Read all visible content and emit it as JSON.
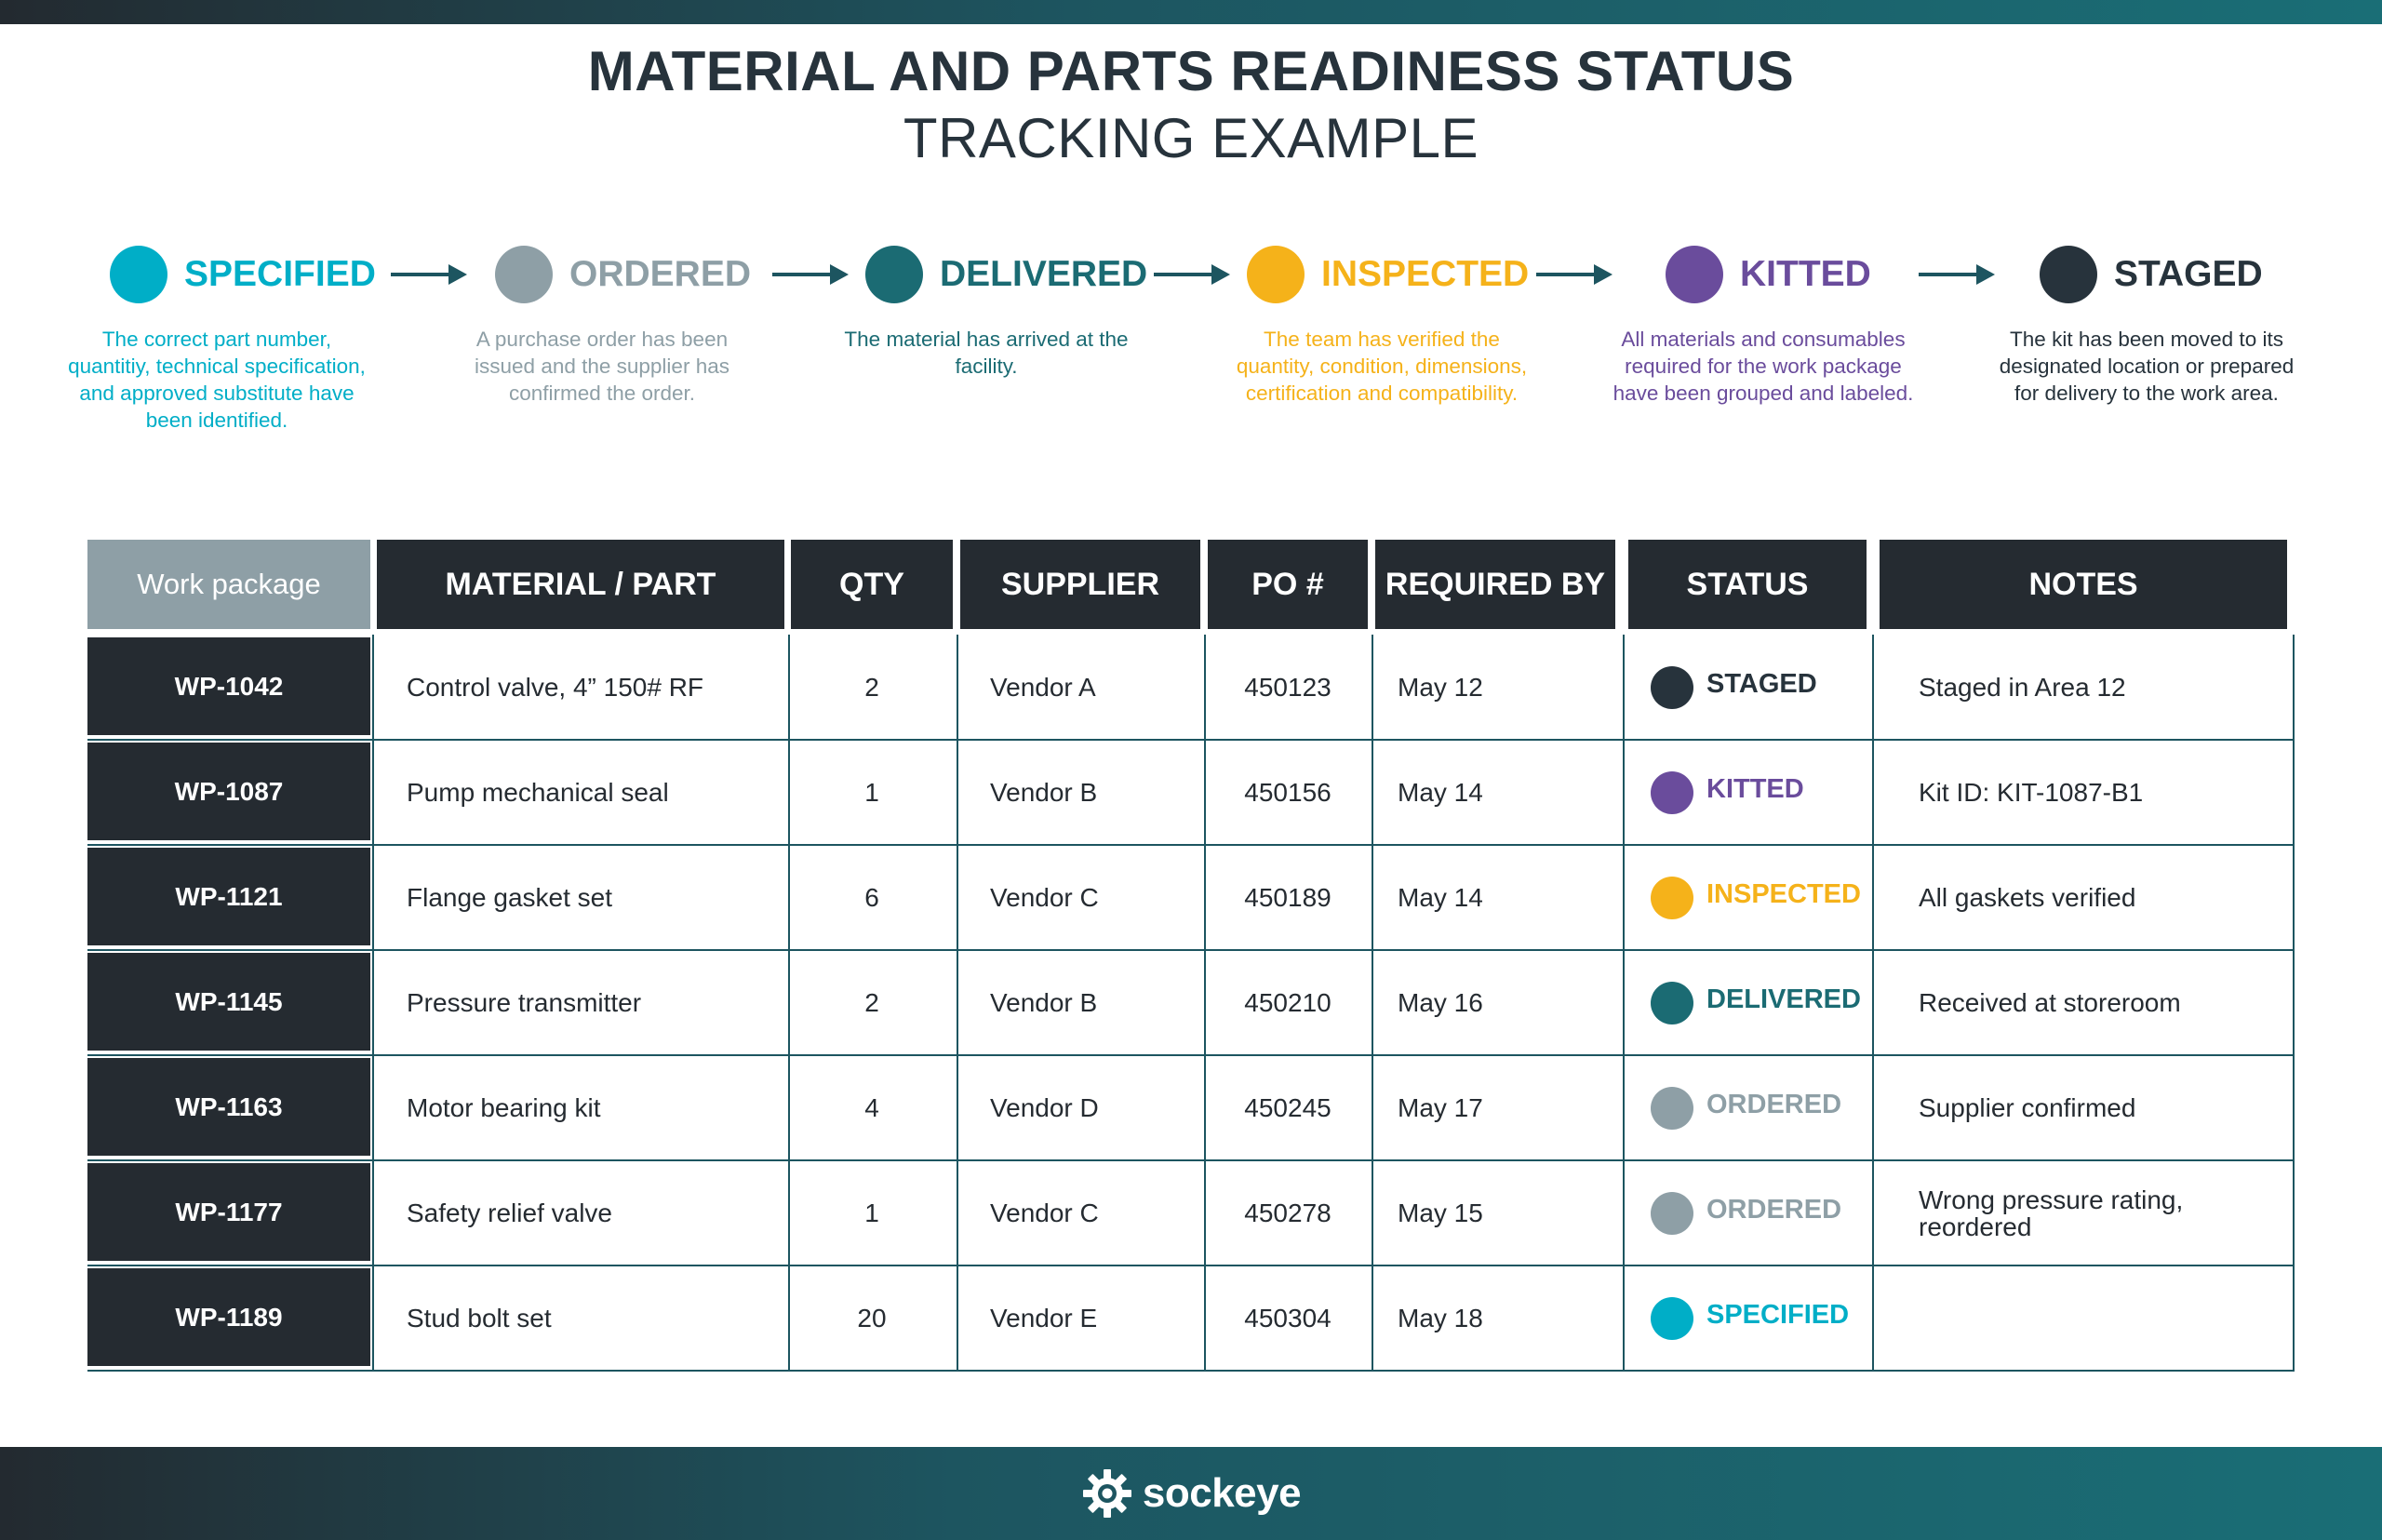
{
  "title": "MATERIAL AND PARTS READINESS STATUS",
  "subtitle": "TRACKING EXAMPLE",
  "colors": {
    "specified": "#00aec7",
    "ordered": "#8e9fa6",
    "delivered": "#1b6b73",
    "inspected": "#f5b21a",
    "kitted": "#6a4c9c",
    "staged": "#27333c"
  },
  "stages": [
    {
      "name": "SPECIFIED",
      "color": "#00aec7",
      "description": "The correct part number, quantitiy, technical specification, and approved substitute have been identified."
    },
    {
      "name": "ORDERED",
      "color": "#8e9fa6",
      "description": "A purchase order has been issued and the supplier has confirmed the order."
    },
    {
      "name": "DELIVERED",
      "color": "#1b6b73",
      "description": "The material has arrived at the facility."
    },
    {
      "name": "INSPECTED",
      "color": "#f5b21a",
      "description": "The team has verified the quantity, condition, dimensions, certification and compatibility."
    },
    {
      "name": "KITTED",
      "color": "#6a4c9c",
      "description": "All materials and consumables required for the work package have been grouped and labeled."
    },
    {
      "name": "STAGED",
      "color": "#27333c",
      "description": "The kit has been moved to its designated location or prepared for delivery to the work area."
    }
  ],
  "table": {
    "headers": [
      "Work package",
      "MATERIAL / PART",
      "QTY",
      "SUPPLIER",
      "PO #",
      "REQUIRED BY",
      "STATUS",
      "NOTES"
    ],
    "rows": [
      {
        "wp": "WP-1042",
        "material": "Control valve, 4” 150# RF",
        "qty": "2",
        "supplier": "Vendor A",
        "po": "450123",
        "required": "May 12",
        "status": "STAGED",
        "status_color": "#27333c",
        "notes": "Staged in Area 12"
      },
      {
        "wp": "WP-1087",
        "material": "Pump mechanical seal",
        "qty": "1",
        "supplier": "Vendor B",
        "po": "450156",
        "required": "May 14",
        "status": "KITTED",
        "status_color": "#6a4c9c",
        "notes": "Kit ID: KIT-1087-B1"
      },
      {
        "wp": "WP-1121",
        "material": "Flange gasket set",
        "qty": "6",
        "supplier": "Vendor C",
        "po": "450189",
        "required": "May 14",
        "status": "INSPECTED",
        "status_color": "#f5b21a",
        "notes": "All gaskets verified"
      },
      {
        "wp": "WP-1145",
        "material": "Pressure transmitter",
        "qty": "2",
        "supplier": "Vendor B",
        "po": "450210",
        "required": "May 16",
        "status": "DELIVERED",
        "status_color": "#1b6b73",
        "notes": "Received at storeroom"
      },
      {
        "wp": "WP-1163",
        "material": "Motor bearing kit",
        "qty": "4",
        "supplier": "Vendor D",
        "po": "450245",
        "required": "May 17",
        "status": "ORDERED",
        "status_color": "#8e9fa6",
        "notes": "Supplier confirmed"
      },
      {
        "wp": "WP-1177",
        "material": "Safety relief valve",
        "qty": "1",
        "supplier": "Vendor C",
        "po": "450278",
        "required": "May 15",
        "status": "ORDERED",
        "status_color": "#8e9fa6",
        "notes": "Wrong pressure rating, reordered"
      },
      {
        "wp": "WP-1189",
        "material": "Stud bolt set",
        "qty": "20",
        "supplier": "Vendor E",
        "po": "450304",
        "required": "May 18",
        "status": "SPECIFIED",
        "status_color": "#00aec7",
        "notes": ""
      }
    ]
  },
  "footer": {
    "logo_text": "sockeye",
    "logo_icon": "gear-eye-icon"
  }
}
